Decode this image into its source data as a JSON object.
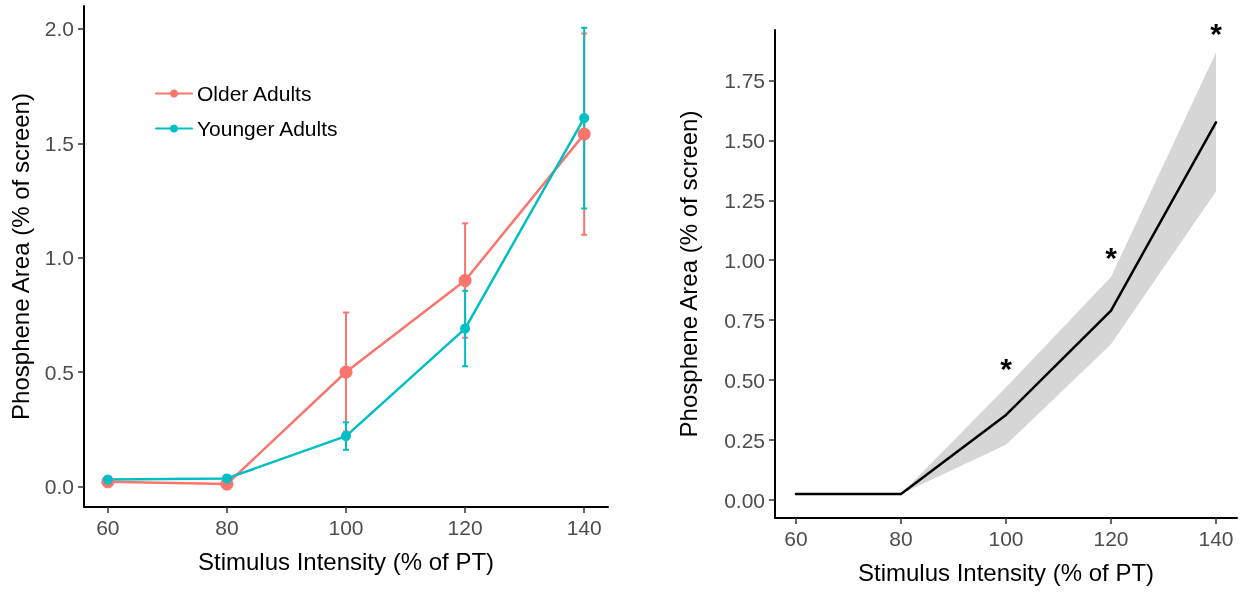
{
  "chart_data": [
    {
      "type": "line",
      "xlabel": "Stimulus Intensity (% of PT)",
      "ylabel": "Phosphene Area (% of screen)",
      "x": [
        60,
        80,
        100,
        120,
        140
      ],
      "series": [
        {
          "name": "Older Adults",
          "color": "#f8766d",
          "values": [
            0.02,
            0.01,
            0.5,
            0.9,
            1.54
          ],
          "errors": [
            null,
            null,
            0.26,
            0.25,
            0.44
          ]
        },
        {
          "name": "Younger Adults",
          "color": "#00bfc4",
          "values": [
            0.03,
            0.035,
            0.22,
            0.69,
            1.61
          ],
          "errors": [
            null,
            null,
            0.06,
            0.165,
            0.395
          ]
        }
      ],
      "xlim": [
        56,
        144
      ],
      "xticks": [
        60,
        80,
        100,
        120,
        140
      ],
      "ylim": [
        -0.09,
        2.1
      ],
      "yticks": [
        {
          "value": 0,
          "label": "0.0"
        },
        0.5,
        {
          "value": 1,
          "label": "1.0"
        },
        1.5,
        {
          "value": 2,
          "label": "2.0"
        }
      ],
      "grid": false,
      "legend": "top left",
      "marker": "circle",
      "line_style": "solid"
    },
    {
      "type": "line",
      "xlabel": "Stimulus Intensity (% of PT)",
      "ylabel": "Phosphene Area (% of screen)",
      "x": [
        60,
        80,
        100,
        120,
        140
      ],
      "series": [
        {
          "color": "#000000",
          "values": [
            0.025,
            0.025,
            0.355,
            0.79,
            1.575
          ],
          "lower": [
            0.025,
            0.025,
            0.23,
            0.65,
            1.287
          ],
          "upper": [
            0.025,
            0.025,
            0.47,
            0.93,
            1.866
          ]
        }
      ],
      "xlim": [
        56,
        144
      ],
      "xticks": [
        60,
        80,
        100,
        120,
        140
      ],
      "ylim": [
        -0.075,
        1.96
      ],
      "yticks": [
        {
          "value": 0,
          "label": "0.00"
        },
        0.25,
        {
          "value": 0.5,
          "label": "0.50"
        },
        0.75,
        {
          "value": 1,
          "label": "1.00"
        },
        1.25,
        {
          "value": 1.5,
          "label": "1.50"
        },
        1.75
      ],
      "annotations": [
        {
          "text": "*",
          "x": 100,
          "y": 0.47
        },
        {
          "text": "*",
          "x": 120,
          "y": 0.93
        },
        {
          "text": "*",
          "x": 140,
          "y": 1.866
        }
      ],
      "grid": false,
      "legend": false,
      "marker": "none",
      "line_style": "solid"
    }
  ]
}
